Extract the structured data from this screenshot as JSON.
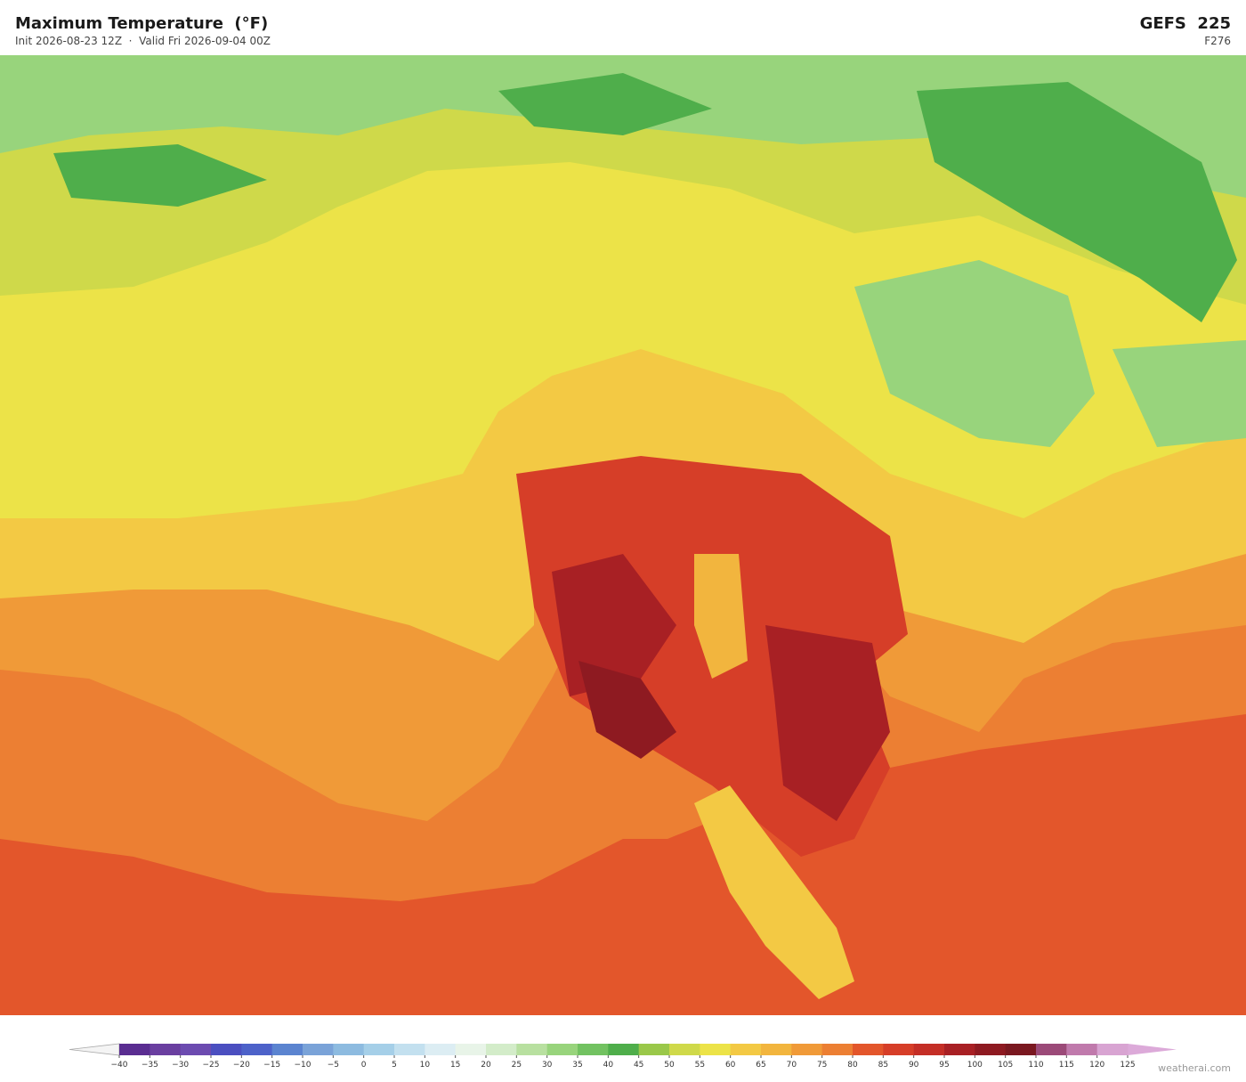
{
  "header": {
    "title": "Maximum Temperature  (°F)",
    "subtitle": "Init 2026-08-23 12Z  ·  Valid Fri 2026-09-04 00Z",
    "model": "GEFS  225",
    "forecast_hour": "F276"
  },
  "colorbar": {
    "ticks": [
      {
        "value": -40,
        "label": "−40"
      },
      {
        "value": -35,
        "label": "−35"
      },
      {
        "value": -30,
        "label": "−30"
      },
      {
        "value": -25,
        "label": "−25"
      },
      {
        "value": -20,
        "label": "−20"
      },
      {
        "value": -15,
        "label": "−15"
      },
      {
        "value": -10,
        "label": "−10"
      },
      {
        "value": -5,
        "label": "−5"
      },
      0,
      5,
      10,
      15,
      20,
      25,
      30,
      35,
      40,
      45,
      50,
      55,
      60,
      65,
      70,
      75,
      80,
      85,
      90,
      95,
      100,
      105,
      110,
      115,
      120,
      125
    ],
    "colors": [
      "#5a2d91",
      "#6a3fa0",
      "#6c4bb0",
      "#4b4fc0",
      "#4d62c9",
      "#5b84d0",
      "#7aa3d8",
      "#8dbbe0",
      "#a5cfe8",
      "#c3e0ef",
      "#dcedf3",
      "#e8f4e8",
      "#d3ecc9",
      "#b8e0a0",
      "#98d47c",
      "#72c261",
      "#4fae4b",
      "#9ac84a",
      "#cfd94a",
      "#ece348",
      "#f3c944",
      "#f2b53e",
      "#f09a38",
      "#ec7f33",
      "#e3562b",
      "#d63e28",
      "#c42e26",
      "#a82024",
      "#8e1a21",
      "#7a1820",
      "#9b4a78",
      "#c07aac",
      "#d8a4d2"
    ],
    "under_color": "#f4f4f4",
    "over_color": "#dcaad9"
  },
  "footer": {
    "credit": "weatherai.com"
  }
}
